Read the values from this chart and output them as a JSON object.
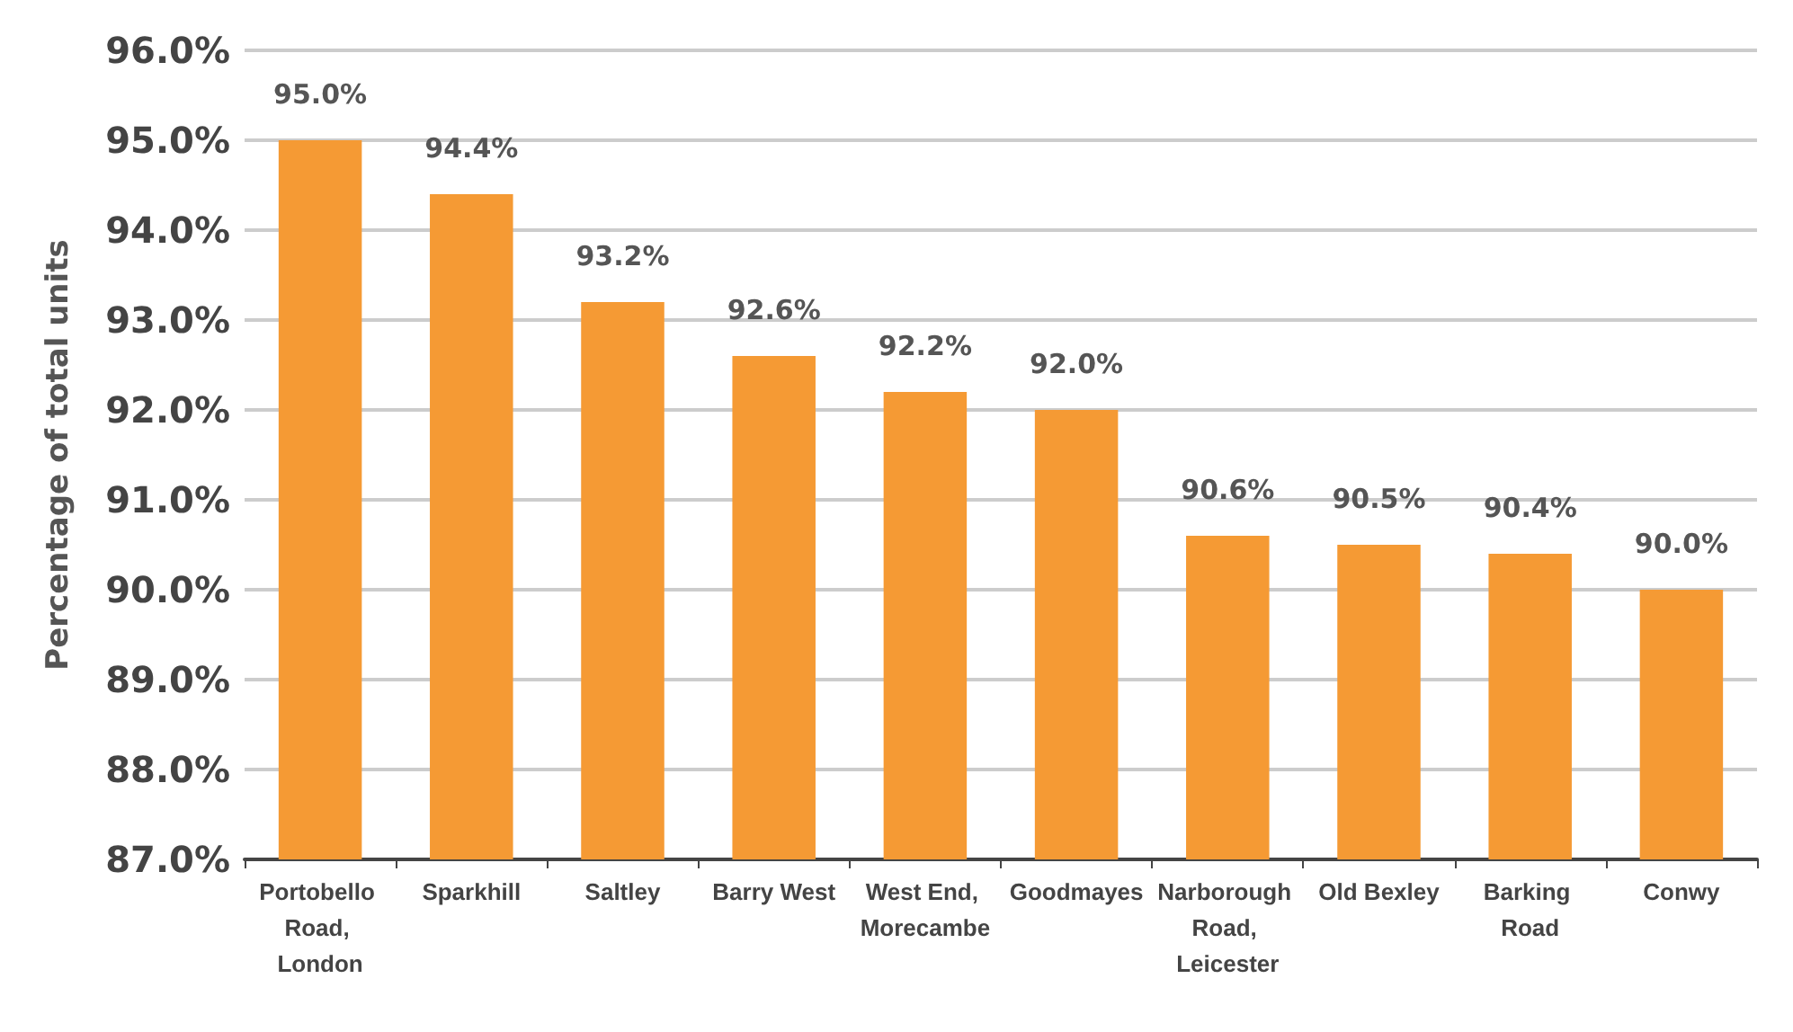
{
  "chart_data": {
    "type": "bar",
    "ylabel": "Percentage of total units",
    "categories": [
      "Portobello Road, London",
      "Sparkhill",
      "Saltley",
      "Barry West",
      "West End, Morecambe",
      "Goodmayes",
      "Narborough Road, Leicester",
      "Old Bexley",
      "Barking Road",
      "Conwy"
    ],
    "values": [
      95.0,
      94.4,
      93.2,
      92.6,
      92.2,
      92.0,
      90.6,
      90.5,
      90.4,
      90.0
    ],
    "value_labels": [
      "95.0%",
      "94.4%",
      "93.2%",
      "92.6%",
      "92.2%",
      "92.0%",
      "90.6%",
      "90.5%",
      "90.4%",
      "90.0%"
    ],
    "color": "#f59a34",
    "ylim": [
      87,
      96
    ],
    "yticks": [
      {
        "value": 87,
        "label": "87.0%"
      },
      {
        "value": 88,
        "label": "88.0%"
      },
      {
        "value": 89,
        "label": "89.0%"
      },
      {
        "value": 90,
        "label": "90.0%"
      },
      {
        "value": 91,
        "label": "91.0%"
      },
      {
        "value": 92,
        "label": "92.0%"
      },
      {
        "value": 93,
        "label": "93.0%"
      },
      {
        "value": 94,
        "label": "94.0%"
      },
      {
        "value": 95,
        "label": "95.0%"
      },
      {
        "value": 96,
        "label": "96.0%"
      }
    ],
    "grid": "y"
  }
}
